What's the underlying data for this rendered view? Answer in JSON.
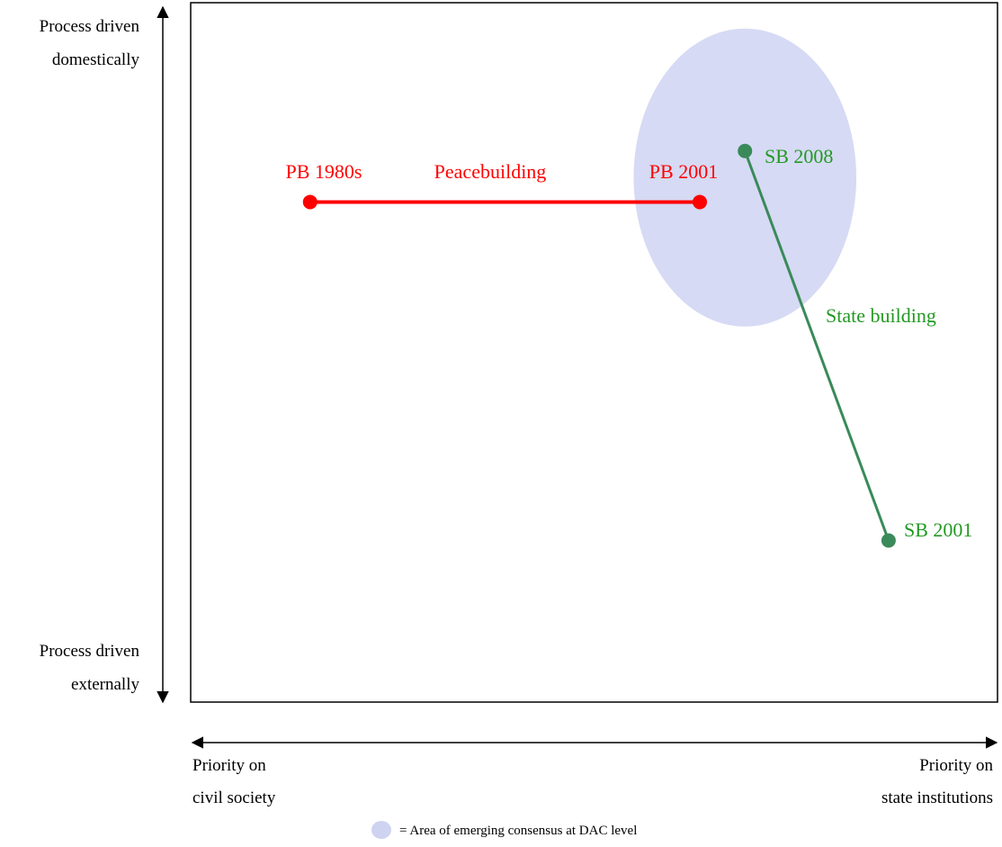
{
  "colors": {
    "peacebuilding": "#ff0000",
    "statebuilding_line": "#3a8a5a",
    "statebuilding_text": "#229922",
    "consensus_area": "#cfd3f2",
    "frame": "#000000"
  },
  "y_axis": {
    "top_label": [
      "Process driven",
      "domestically"
    ],
    "bottom_label": [
      "Process driven",
      "externally"
    ]
  },
  "x_axis": {
    "left_label": [
      "Priority on",
      "civil society"
    ],
    "right_label": [
      "Priority on",
      "state institutions"
    ]
  },
  "peacebuilding": {
    "name": "Peacebuilding",
    "start_label": "PB 1980s",
    "end_label": "PB 2001",
    "start_point": {
      "civil_to_state": 0.148,
      "external_to_domestic": 0.715
    },
    "end_point": {
      "civil_to_state": 0.631,
      "external_to_domestic": 0.715
    }
  },
  "statebuilding": {
    "name": "State building",
    "start_label": "SB 2001",
    "end_label": "SB 2008",
    "start_point": {
      "civil_to_state": 0.865,
      "external_to_domestic": 0.231
    },
    "end_point": {
      "civil_to_state": 0.687,
      "external_to_domestic": 0.788
    }
  },
  "consensus_area": {
    "center": {
      "civil_to_state": 0.687,
      "external_to_domestic": 0.75
    },
    "spread": {
      "civil_to_state": 0.138,
      "external_to_domestic": 0.213
    }
  },
  "legend": {
    "icon": "blue-ellipse-icon",
    "text": "=  Area of emerging consensus at DAC level"
  }
}
